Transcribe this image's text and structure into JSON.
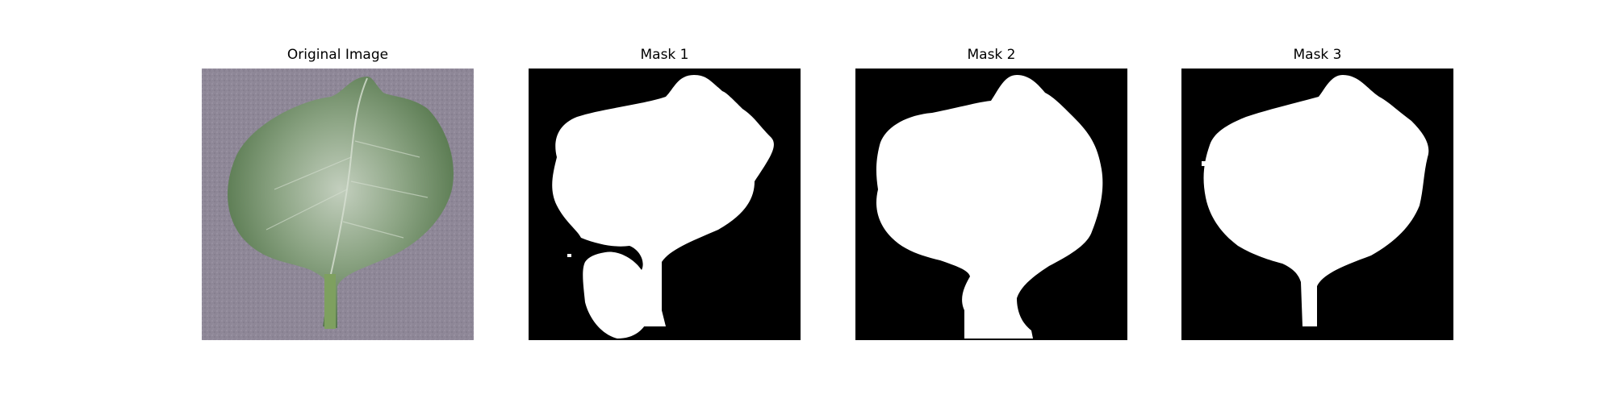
{
  "figure": {
    "panels": [
      {
        "title": "Original Image",
        "icon": "leaf-photo"
      },
      {
        "title": "Mask 1",
        "icon": "mask-1-image"
      },
      {
        "title": "Mask 2",
        "icon": "mask-2-image"
      },
      {
        "title": "Mask 3",
        "icon": "mask-3-image"
      }
    ]
  },
  "colors": {
    "background": "#ffffff",
    "mask_bg": "#000000",
    "mask_fg": "#ffffff",
    "photo_bg": "#8e8797",
    "leaf_dark": "#4f7444",
    "leaf_light": "#b9c7b3"
  }
}
